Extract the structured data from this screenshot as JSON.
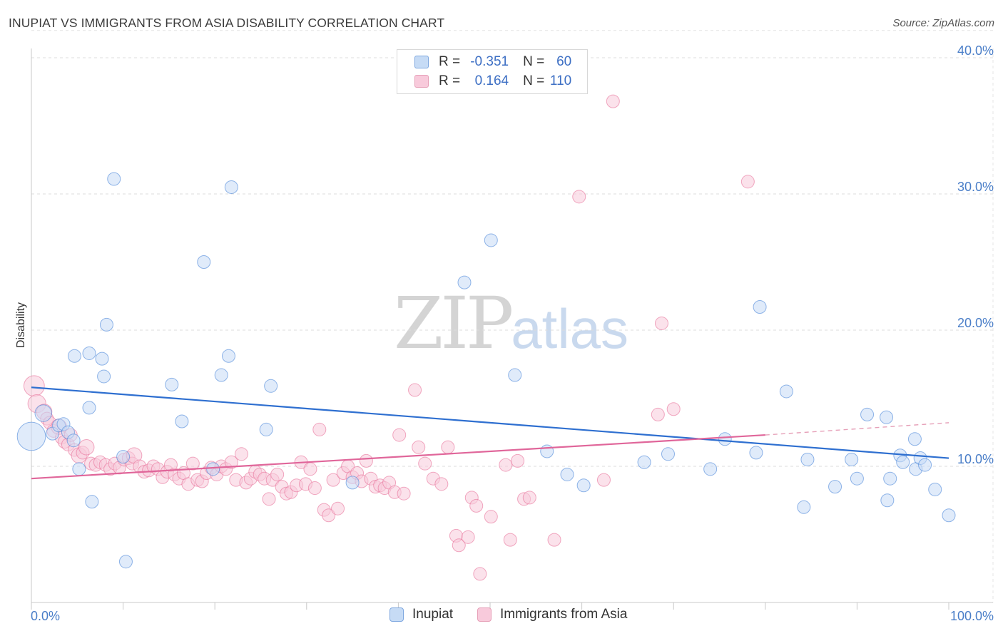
{
  "header": {
    "title": "INUPIAT VS IMMIGRANTS FROM ASIA DISABILITY CORRELATION CHART",
    "source": "Source: ZipAtlas.com"
  },
  "legend_top": {
    "rows": [
      {
        "r_label": "R =",
        "r_value": "-0.351",
        "n_label": "N =",
        "n_value": "60"
      },
      {
        "r_label": "R =",
        "r_value": "0.164",
        "n_label": "N =",
        "n_value": "110"
      }
    ]
  },
  "legend_bottom": {
    "items": [
      "Inupiat",
      "Immigrants from Asia"
    ]
  },
  "watermark": {
    "zip": "ZIP",
    "atlas": "atlas"
  },
  "colors": {
    "blue": "#4a86d8",
    "blue_fill": "#c6dbf5",
    "pink": "#e8729a",
    "pink_fill": "#f8cadb",
    "tick_text": "#4a7ec8"
  },
  "chart_data": {
    "type": "scatter",
    "title": "INUPIAT VS IMMIGRANTS FROM ASIA DISABILITY CORRELATION CHART",
    "xlabel": "",
    "ylabel": "Disability",
    "xlim": [
      0,
      100
    ],
    "ylim": [
      0,
      42
    ],
    "x_ticks": [
      "0.0%",
      "100.0%"
    ],
    "y_ticks": [
      {
        "value": 10,
        "label": "10.0%"
      },
      {
        "value": 20,
        "label": "20.0%"
      },
      {
        "value": 30,
        "label": "30.0%"
      },
      {
        "value": 40,
        "label": "40.0%"
      }
    ],
    "grid": true,
    "legend_position": "top-center",
    "series": [
      {
        "name": "Inupiat",
        "color": "#4a86d8",
        "R": -0.351,
        "N": 60,
        "trend": {
          "x": [
            0,
            100
          ],
          "y": [
            15.8,
            10.6
          ]
        },
        "points": [
          {
            "x": 0.0,
            "y": 12.2,
            "s": 2.2
          },
          {
            "x": 1.3,
            "y": 13.9,
            "s": 1.3
          },
          {
            "x": 2.3,
            "y": 12.4
          },
          {
            "x": 3.0,
            "y": 13.0
          },
          {
            "x": 3.5,
            "y": 13.1
          },
          {
            "x": 4.0,
            "y": 12.5
          },
          {
            "x": 4.6,
            "y": 11.9
          },
          {
            "x": 5.2,
            "y": 9.8
          },
          {
            "x": 4.7,
            "y": 18.1
          },
          {
            "x": 6.3,
            "y": 18.3
          },
          {
            "x": 6.3,
            "y": 14.3
          },
          {
            "x": 6.6,
            "y": 7.4
          },
          {
            "x": 7.7,
            "y": 17.9
          },
          {
            "x": 7.9,
            "y": 16.6
          },
          {
            "x": 8.2,
            "y": 20.4
          },
          {
            "x": 9.0,
            "y": 31.1
          },
          {
            "x": 10.0,
            "y": 10.7
          },
          {
            "x": 10.3,
            "y": 3.0
          },
          {
            "x": 15.3,
            "y": 16.0
          },
          {
            "x": 16.4,
            "y": 13.3
          },
          {
            "x": 18.8,
            "y": 25.0
          },
          {
            "x": 19.8,
            "y": 9.8
          },
          {
            "x": 20.7,
            "y": 16.7
          },
          {
            "x": 21.5,
            "y": 18.1
          },
          {
            "x": 21.8,
            "y": 30.5
          },
          {
            "x": 25.6,
            "y": 12.7
          },
          {
            "x": 26.1,
            "y": 15.9
          },
          {
            "x": 35.0,
            "y": 8.8
          },
          {
            "x": 47.2,
            "y": 23.5
          },
          {
            "x": 50.1,
            "y": 26.6
          },
          {
            "x": 52.7,
            "y": 16.7
          },
          {
            "x": 56.2,
            "y": 11.1
          },
          {
            "x": 58.4,
            "y": 9.4
          },
          {
            "x": 60.2,
            "y": 8.6
          },
          {
            "x": 66.8,
            "y": 10.3
          },
          {
            "x": 69.4,
            "y": 10.9
          },
          {
            "x": 74.0,
            "y": 9.8
          },
          {
            "x": 75.6,
            "y": 12.0
          },
          {
            "x": 79.0,
            "y": 11.0
          },
          {
            "x": 79.4,
            "y": 21.7
          },
          {
            "x": 82.3,
            "y": 15.5
          },
          {
            "x": 84.2,
            "y": 7.0
          },
          {
            "x": 84.6,
            "y": 10.5
          },
          {
            "x": 87.6,
            "y": 8.5
          },
          {
            "x": 89.4,
            "y": 10.5
          },
          {
            "x": 90.0,
            "y": 9.1
          },
          {
            "x": 91.1,
            "y": 13.8
          },
          {
            "x": 93.2,
            "y": 13.6
          },
          {
            "x": 93.3,
            "y": 7.5
          },
          {
            "x": 93.6,
            "y": 9.1
          },
          {
            "x": 94.7,
            "y": 10.8
          },
          {
            "x": 95.0,
            "y": 10.3
          },
          {
            "x": 96.3,
            "y": 12.0
          },
          {
            "x": 96.4,
            "y": 9.8
          },
          {
            "x": 96.9,
            "y": 10.6
          },
          {
            "x": 97.4,
            "y": 10.1
          },
          {
            "x": 98.5,
            "y": 8.3
          },
          {
            "x": 100.0,
            "y": 6.4
          }
        ]
      },
      {
        "name": "Immigrants from Asia",
        "color": "#e8729a",
        "R": 0.164,
        "N": 110,
        "trend": {
          "x": [
            0,
            80
          ],
          "y": [
            9.1,
            12.3
          ]
        },
        "trend_dashed": {
          "x": [
            80,
            100
          ],
          "y": [
            12.3,
            13.2
          ]
        },
        "points": [
          {
            "x": 0.3,
            "y": 15.9,
            "s": 1.6
          },
          {
            "x": 0.6,
            "y": 14.6,
            "s": 1.4
          },
          {
            "x": 1.4,
            "y": 14.0,
            "s": 1.2
          },
          {
            "x": 1.7,
            "y": 13.5
          },
          {
            "x": 2.0,
            "y": 13.2
          },
          {
            "x": 2.4,
            "y": 12.6
          },
          {
            "x": 3.0,
            "y": 12.9,
            "s": 1.2
          },
          {
            "x": 3.3,
            "y": 12.1
          },
          {
            "x": 3.6,
            "y": 11.8
          },
          {
            "x": 4.0,
            "y": 11.6
          },
          {
            "x": 4.3,
            "y": 12.3
          },
          {
            "x": 4.7,
            "y": 11.2
          },
          {
            "x": 5.2,
            "y": 10.8,
            "s": 1.2
          },
          {
            "x": 5.6,
            "y": 11.0
          },
          {
            "x": 6.0,
            "y": 11.4,
            "s": 1.2
          },
          {
            "x": 6.5,
            "y": 10.2
          },
          {
            "x": 7.0,
            "y": 10.1
          },
          {
            "x": 7.5,
            "y": 10.3
          },
          {
            "x": 8.1,
            "y": 10.1
          },
          {
            "x": 8.6,
            "y": 9.8
          },
          {
            "x": 9.1,
            "y": 10.2
          },
          {
            "x": 9.6,
            "y": 9.9
          },
          {
            "x": 10.1,
            "y": 10.5
          },
          {
            "x": 10.6,
            "y": 10.6
          },
          {
            "x": 11.0,
            "y": 10.2
          },
          {
            "x": 11.2,
            "y": 10.8,
            "s": 1.2
          },
          {
            "x": 11.8,
            "y": 10.0
          },
          {
            "x": 12.3,
            "y": 9.6
          },
          {
            "x": 12.8,
            "y": 9.7
          },
          {
            "x": 13.3,
            "y": 10.0
          },
          {
            "x": 13.8,
            "y": 9.8
          },
          {
            "x": 14.3,
            "y": 9.2
          },
          {
            "x": 14.8,
            "y": 9.6
          },
          {
            "x": 15.2,
            "y": 10.1
          },
          {
            "x": 15.6,
            "y": 9.4
          },
          {
            "x": 16.1,
            "y": 9.1
          },
          {
            "x": 16.6,
            "y": 9.5
          },
          {
            "x": 17.1,
            "y": 8.7
          },
          {
            "x": 17.6,
            "y": 10.2
          },
          {
            "x": 18.1,
            "y": 9.0
          },
          {
            "x": 18.6,
            "y": 8.9
          },
          {
            "x": 19.1,
            "y": 9.5
          },
          {
            "x": 19.6,
            "y": 9.9
          },
          {
            "x": 20.2,
            "y": 9.4
          },
          {
            "x": 20.7,
            "y": 10.0
          },
          {
            "x": 21.2,
            "y": 9.8
          },
          {
            "x": 21.8,
            "y": 10.3
          },
          {
            "x": 22.3,
            "y": 9.0
          },
          {
            "x": 22.9,
            "y": 10.9
          },
          {
            "x": 23.4,
            "y": 8.8
          },
          {
            "x": 23.9,
            "y": 9.1
          },
          {
            "x": 24.4,
            "y": 9.6
          },
          {
            "x": 24.9,
            "y": 9.4
          },
          {
            "x": 25.4,
            "y": 9.1
          },
          {
            "x": 25.9,
            "y": 7.6
          },
          {
            "x": 26.3,
            "y": 9.0
          },
          {
            "x": 26.8,
            "y": 9.4
          },
          {
            "x": 27.3,
            "y": 8.5
          },
          {
            "x": 27.8,
            "y": 8.0
          },
          {
            "x": 28.3,
            "y": 8.1
          },
          {
            "x": 28.9,
            "y": 8.6
          },
          {
            "x": 29.4,
            "y": 10.3
          },
          {
            "x": 29.9,
            "y": 8.7
          },
          {
            "x": 30.4,
            "y": 9.8
          },
          {
            "x": 30.9,
            "y": 8.4
          },
          {
            "x": 31.4,
            "y": 12.7
          },
          {
            "x": 31.9,
            "y": 6.8
          },
          {
            "x": 32.4,
            "y": 6.4
          },
          {
            "x": 32.9,
            "y": 9.0
          },
          {
            "x": 33.4,
            "y": 6.9
          },
          {
            "x": 34.0,
            "y": 9.5
          },
          {
            "x": 34.5,
            "y": 10.0
          },
          {
            "x": 35.0,
            "y": 9.2
          },
          {
            "x": 35.5,
            "y": 9.5
          },
          {
            "x": 36.0,
            "y": 8.9
          },
          {
            "x": 36.5,
            "y": 10.4
          },
          {
            "x": 37.0,
            "y": 9.1
          },
          {
            "x": 37.5,
            "y": 8.5
          },
          {
            "x": 38.0,
            "y": 8.6
          },
          {
            "x": 38.5,
            "y": 8.4
          },
          {
            "x": 39.0,
            "y": 8.8
          },
          {
            "x": 39.6,
            "y": 8.1
          },
          {
            "x": 40.1,
            "y": 12.3
          },
          {
            "x": 40.6,
            "y": 8.0
          },
          {
            "x": 41.8,
            "y": 15.6
          },
          {
            "x": 42.2,
            "y": 11.4
          },
          {
            "x": 42.9,
            "y": 10.2
          },
          {
            "x": 43.8,
            "y": 9.1
          },
          {
            "x": 44.7,
            "y": 8.7
          },
          {
            "x": 45.4,
            "y": 11.4
          },
          {
            "x": 46.3,
            "y": 4.9
          },
          {
            "x": 46.6,
            "y": 4.2
          },
          {
            "x": 47.6,
            "y": 4.8
          },
          {
            "x": 48.0,
            "y": 7.7
          },
          {
            "x": 48.5,
            "y": 7.1
          },
          {
            "x": 48.9,
            "y": 2.1
          },
          {
            "x": 50.1,
            "y": 6.3
          },
          {
            "x": 51.7,
            "y": 10.1
          },
          {
            "x": 52.2,
            "y": 4.6
          },
          {
            "x": 53.0,
            "y": 10.4
          },
          {
            "x": 53.7,
            "y": 7.6
          },
          {
            "x": 54.3,
            "y": 7.7
          },
          {
            "x": 57.0,
            "y": 4.6
          },
          {
            "x": 59.7,
            "y": 29.8
          },
          {
            "x": 62.4,
            "y": 9.0
          },
          {
            "x": 63.4,
            "y": 36.8
          },
          {
            "x": 68.3,
            "y": 13.8
          },
          {
            "x": 68.7,
            "y": 20.5
          },
          {
            "x": 70.0,
            "y": 14.2
          },
          {
            "x": 78.1,
            "y": 30.9
          }
        ]
      }
    ]
  }
}
